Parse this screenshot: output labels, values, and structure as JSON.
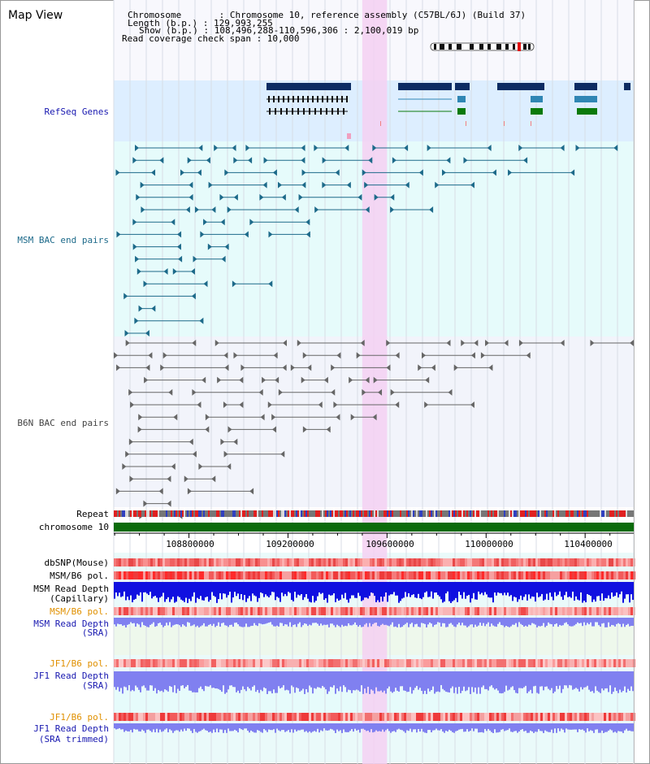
{
  "view_title": "Map View",
  "info": {
    "chromosome_line": "Chromosome       : Chromosome 10, reference assembly (C57BL/6J) (Build 37)",
    "length_line": "Length (b.p.) : 129,993,255",
    "show_line": "Show (b.p.) : 108,496,288-110,596,306 : 2,100,019 bp",
    "coverage_line": "Read coverage check span : 10,000"
  },
  "tracks": {
    "refseq": "RefSeq Genes",
    "msm_bac": "MSM BAC end pairs",
    "b6n_bac": "B6N BAC end pairs",
    "repeat": "Repeat",
    "chromosome": "chromosome 10",
    "dbsnp": "dbSNP(Mouse)",
    "msm_b6_pol_1": "MSM/B6 pol.",
    "msm_read_depth_cap_1": "MSM Read Depth",
    "msm_read_depth_cap_2": "(Capillary)",
    "msm_b6_pol_2": "MSM/B6 pol.",
    "msm_read_depth_sra_1": "MSM Read Depth",
    "msm_read_depth_sra_2": "(SRA)",
    "jf1_b6_pol_1": "JF1/B6 pol.",
    "jf1_read_depth_sra_1": "JF1 Read Depth",
    "jf1_read_depth_sra_2": "(SRA)",
    "jf1_b6_pol_2": "JF1/B6 pol.",
    "jf1_read_depth_trim_1": "JF1 Read Depth",
    "jf1_read_depth_trim_2": "(SRA trimmed)"
  },
  "axis": {
    "range_bp": [
      108496288,
      110596306
    ],
    "ticks": [
      "108800000",
      "109200000",
      "109600000",
      "110000000",
      "110400000"
    ]
  },
  "highlight_region_bp": [
    109500000,
    109600000
  ],
  "colors": {
    "refseq_bg": "#ddeeff",
    "msm_bg": "#e6fbfb",
    "b6n_bg": "#f2f4fb",
    "highlight": "#f4d0f2",
    "refseq_dark": "#0d2c63",
    "refseq_mid": "#2f86b4",
    "refseq_green": "#0b7a0b",
    "msm_pair": "#1d6a8a",
    "b6n_pair": "#666666",
    "chromosome_bar": "#0b6b0b",
    "depth_blue": "#1010e0",
    "depth_lightblue": "#8080f0",
    "label_blue": "#1818b0",
    "label_orange": "#e09000"
  }
}
